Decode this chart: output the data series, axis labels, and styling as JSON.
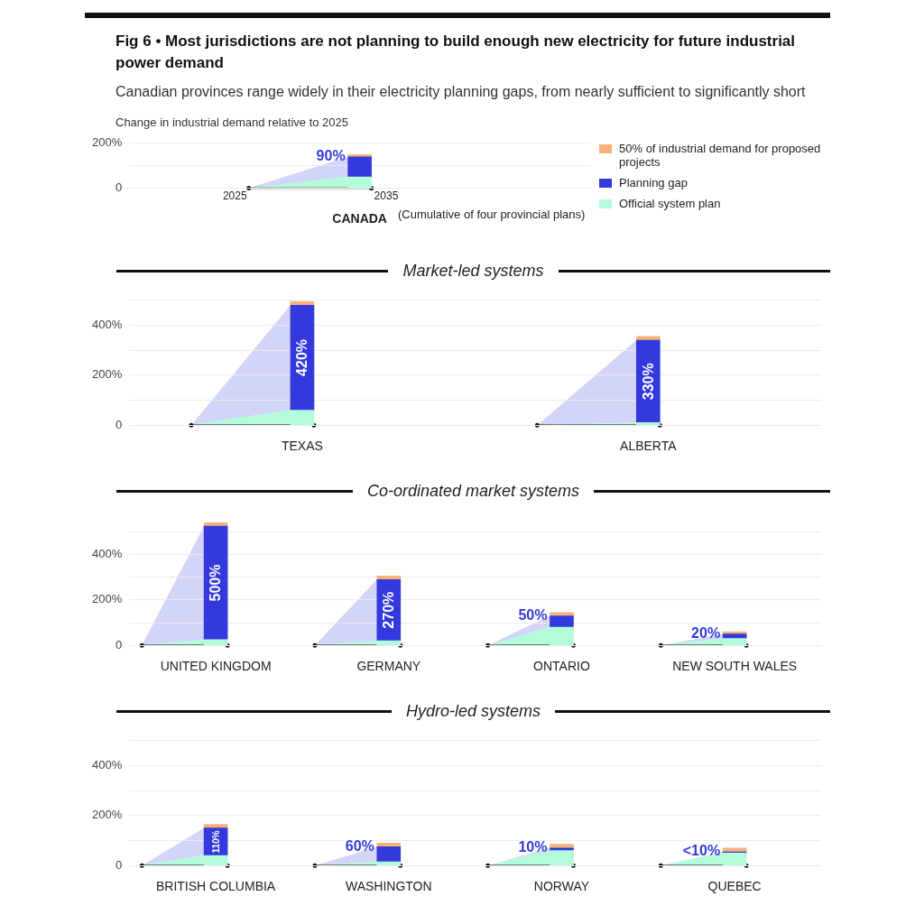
{
  "chart_data": [
    {
      "type": "bar",
      "stacked": true,
      "title": "Fig 6 • Most jurisdictions are not planning to build enough new electricity for future industrial power demand",
      "subtitle": "Canadian provinces range widely in their electricity planning gaps, from nearly sufficient to significantly short",
      "ylabel": "Change in industrial demand relative to 2025",
      "categories": [
        "CANADA"
      ],
      "series": [
        {
          "name": "Official system plan",
          "color": "#b3fcd9",
          "values": [
            50
          ]
        },
        {
          "name": "Planning gap",
          "color": "#3339dd",
          "values": [
            90
          ],
          "value_labels": [
            "90%"
          ]
        },
        {
          "name": "50% of industrial demand for proposed projects",
          "color": "#f7b27a",
          "values": [
            10
          ]
        }
      ],
      "ylim": [
        0,
        200
      ],
      "yticks": [
        {
          "value": 0,
          "label": "0"
        },
        {
          "value": 100,
          "label": null
        },
        {
          "value": 200,
          "label": "200%"
        }
      ],
      "grid": "y",
      "legend": "right",
      "annotations": [
        "2025",
        "2035",
        "(Cumulative of four provincial plans)"
      ]
    },
    {
      "type": "bar",
      "stacked": true,
      "title": "Market-led systems",
      "categories": [
        "TEXAS",
        "ALBERTA"
      ],
      "series": [
        {
          "color": "#b3fcd9",
          "values": [
            60,
            10
          ]
        },
        {
          "color": "#3339dd",
          "values": [
            420,
            330
          ],
          "value_labels": [
            "420%",
            "330%"
          ]
        },
        {
          "color": "#f7b27a",
          "values": [
            15,
            15
          ]
        }
      ],
      "ylim": [
        0,
        500
      ],
      "yticks": [
        {
          "value": 0,
          "label": "0"
        },
        {
          "value": 100,
          "label": null
        },
        {
          "value": 200,
          "label": "200%"
        },
        {
          "value": 300,
          "label": null
        },
        {
          "value": 400,
          "label": "400%"
        },
        {
          "value": 500,
          "label": null
        }
      ],
      "grid": "y"
    },
    {
      "type": "bar",
      "stacked": true,
      "title": "Co-ordinated market systems",
      "categories": [
        "UNITED KINGDOM",
        "GERMANY",
        "ONTARIO",
        "NEW SOUTH WALES"
      ],
      "series": [
        {
          "color": "#b3fcd9",
          "values": [
            25,
            20,
            80,
            30
          ]
        },
        {
          "color": "#3339dd",
          "values": [
            500,
            270,
            50,
            20
          ],
          "value_labels": [
            "500%",
            "270%",
            "50%",
            "20%"
          ]
        },
        {
          "color": "#f7b27a",
          "values": [
            15,
            15,
            15,
            10
          ]
        }
      ],
      "ylim": [
        0,
        550
      ],
      "yticks": [
        {
          "value": 0,
          "label": "0"
        },
        {
          "value": 100,
          "label": null
        },
        {
          "value": 200,
          "label": "200%"
        },
        {
          "value": 300,
          "label": null
        },
        {
          "value": 400,
          "label": "400%"
        },
        {
          "value": 500,
          "label": null
        }
      ],
      "grid": "y"
    },
    {
      "type": "bar",
      "stacked": true,
      "title": "Hydro-led systems",
      "categories": [
        "BRITISH COLUMBIA",
        "WASHINGTON",
        "NORWAY",
        "QUEBEC"
      ],
      "series": [
        {
          "color": "#b3fcd9",
          "values": [
            40,
            15,
            60,
            50
          ]
        },
        {
          "color": "#3339dd",
          "values": [
            110,
            60,
            10,
            5
          ],
          "value_labels": [
            "110%",
            "60%",
            "10%",
            "<10%"
          ]
        },
        {
          "color": "#f7b27a",
          "values": [
            15,
            15,
            15,
            15
          ]
        }
      ],
      "ylim": [
        0,
        500
      ],
      "yticks": [
        {
          "value": 0,
          "label": "0"
        },
        {
          "value": 100,
          "label": null
        },
        {
          "value": 200,
          "label": "200%"
        },
        {
          "value": 300,
          "label": null
        },
        {
          "value": 400,
          "label": "400%"
        },
        {
          "value": 500,
          "label": null
        }
      ],
      "grid": "y"
    }
  ]
}
